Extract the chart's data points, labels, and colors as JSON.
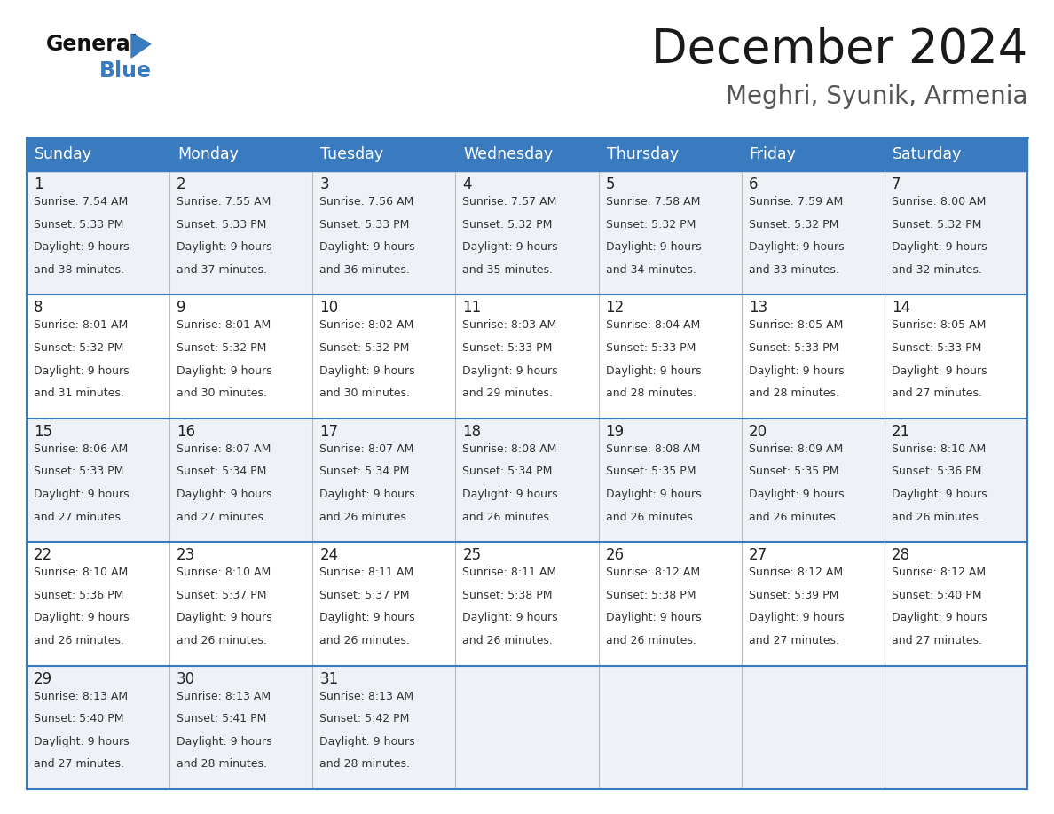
{
  "title": "December 2024",
  "subtitle": "Meghri, Syunik, Armenia",
  "header_bg": "#3a7bbf",
  "header_text": "#ffffff",
  "row_bg_odd": "#eef2f7",
  "row_bg_even": "#ffffff",
  "border_color": "#3a7bbf",
  "cell_border_color": "#bbbbbb",
  "days_of_week": [
    "Sunday",
    "Monday",
    "Tuesday",
    "Wednesday",
    "Thursday",
    "Friday",
    "Saturday"
  ],
  "calendar_data": [
    [
      {
        "day": 1,
        "sunrise": "7:54 AM",
        "sunset": "5:33 PM",
        "daylight_hours": 9,
        "daylight_minutes": 38
      },
      {
        "day": 2,
        "sunrise": "7:55 AM",
        "sunset": "5:33 PM",
        "daylight_hours": 9,
        "daylight_minutes": 37
      },
      {
        "day": 3,
        "sunrise": "7:56 AM",
        "sunset": "5:33 PM",
        "daylight_hours": 9,
        "daylight_minutes": 36
      },
      {
        "day": 4,
        "sunrise": "7:57 AM",
        "sunset": "5:32 PM",
        "daylight_hours": 9,
        "daylight_minutes": 35
      },
      {
        "day": 5,
        "sunrise": "7:58 AM",
        "sunset": "5:32 PM",
        "daylight_hours": 9,
        "daylight_minutes": 34
      },
      {
        "day": 6,
        "sunrise": "7:59 AM",
        "sunset": "5:32 PM",
        "daylight_hours": 9,
        "daylight_minutes": 33
      },
      {
        "day": 7,
        "sunrise": "8:00 AM",
        "sunset": "5:32 PM",
        "daylight_hours": 9,
        "daylight_minutes": 32
      }
    ],
    [
      {
        "day": 8,
        "sunrise": "8:01 AM",
        "sunset": "5:32 PM",
        "daylight_hours": 9,
        "daylight_minutes": 31
      },
      {
        "day": 9,
        "sunrise": "8:01 AM",
        "sunset": "5:32 PM",
        "daylight_hours": 9,
        "daylight_minutes": 30
      },
      {
        "day": 10,
        "sunrise": "8:02 AM",
        "sunset": "5:32 PM",
        "daylight_hours": 9,
        "daylight_minutes": 30
      },
      {
        "day": 11,
        "sunrise": "8:03 AM",
        "sunset": "5:33 PM",
        "daylight_hours": 9,
        "daylight_minutes": 29
      },
      {
        "day": 12,
        "sunrise": "8:04 AM",
        "sunset": "5:33 PM",
        "daylight_hours": 9,
        "daylight_minutes": 28
      },
      {
        "day": 13,
        "sunrise": "8:05 AM",
        "sunset": "5:33 PM",
        "daylight_hours": 9,
        "daylight_minutes": 28
      },
      {
        "day": 14,
        "sunrise": "8:05 AM",
        "sunset": "5:33 PM",
        "daylight_hours": 9,
        "daylight_minutes": 27
      }
    ],
    [
      {
        "day": 15,
        "sunrise": "8:06 AM",
        "sunset": "5:33 PM",
        "daylight_hours": 9,
        "daylight_minutes": 27
      },
      {
        "day": 16,
        "sunrise": "8:07 AM",
        "sunset": "5:34 PM",
        "daylight_hours": 9,
        "daylight_minutes": 27
      },
      {
        "day": 17,
        "sunrise": "8:07 AM",
        "sunset": "5:34 PM",
        "daylight_hours": 9,
        "daylight_minutes": 26
      },
      {
        "day": 18,
        "sunrise": "8:08 AM",
        "sunset": "5:34 PM",
        "daylight_hours": 9,
        "daylight_minutes": 26
      },
      {
        "day": 19,
        "sunrise": "8:08 AM",
        "sunset": "5:35 PM",
        "daylight_hours": 9,
        "daylight_minutes": 26
      },
      {
        "day": 20,
        "sunrise": "8:09 AM",
        "sunset": "5:35 PM",
        "daylight_hours": 9,
        "daylight_minutes": 26
      },
      {
        "day": 21,
        "sunrise": "8:10 AM",
        "sunset": "5:36 PM",
        "daylight_hours": 9,
        "daylight_minutes": 26
      }
    ],
    [
      {
        "day": 22,
        "sunrise": "8:10 AM",
        "sunset": "5:36 PM",
        "daylight_hours": 9,
        "daylight_minutes": 26
      },
      {
        "day": 23,
        "sunrise": "8:10 AM",
        "sunset": "5:37 PM",
        "daylight_hours": 9,
        "daylight_minutes": 26
      },
      {
        "day": 24,
        "sunrise": "8:11 AM",
        "sunset": "5:37 PM",
        "daylight_hours": 9,
        "daylight_minutes": 26
      },
      {
        "day": 25,
        "sunrise": "8:11 AM",
        "sunset": "5:38 PM",
        "daylight_hours": 9,
        "daylight_minutes": 26
      },
      {
        "day": 26,
        "sunrise": "8:12 AM",
        "sunset": "5:38 PM",
        "daylight_hours": 9,
        "daylight_minutes": 26
      },
      {
        "day": 27,
        "sunrise": "8:12 AM",
        "sunset": "5:39 PM",
        "daylight_hours": 9,
        "daylight_minutes": 27
      },
      {
        "day": 28,
        "sunrise": "8:12 AM",
        "sunset": "5:40 PM",
        "daylight_hours": 9,
        "daylight_minutes": 27
      }
    ],
    [
      {
        "day": 29,
        "sunrise": "8:13 AM",
        "sunset": "5:40 PM",
        "daylight_hours": 9,
        "daylight_minutes": 27
      },
      {
        "day": 30,
        "sunrise": "8:13 AM",
        "sunset": "5:41 PM",
        "daylight_hours": 9,
        "daylight_minutes": 28
      },
      {
        "day": 31,
        "sunrise": "8:13 AM",
        "sunset": "5:42 PM",
        "daylight_hours": 9,
        "daylight_minutes": 28
      },
      null,
      null,
      null,
      null
    ]
  ],
  "fig_width": 11.88,
  "fig_height": 9.18,
  "dpi": 100
}
